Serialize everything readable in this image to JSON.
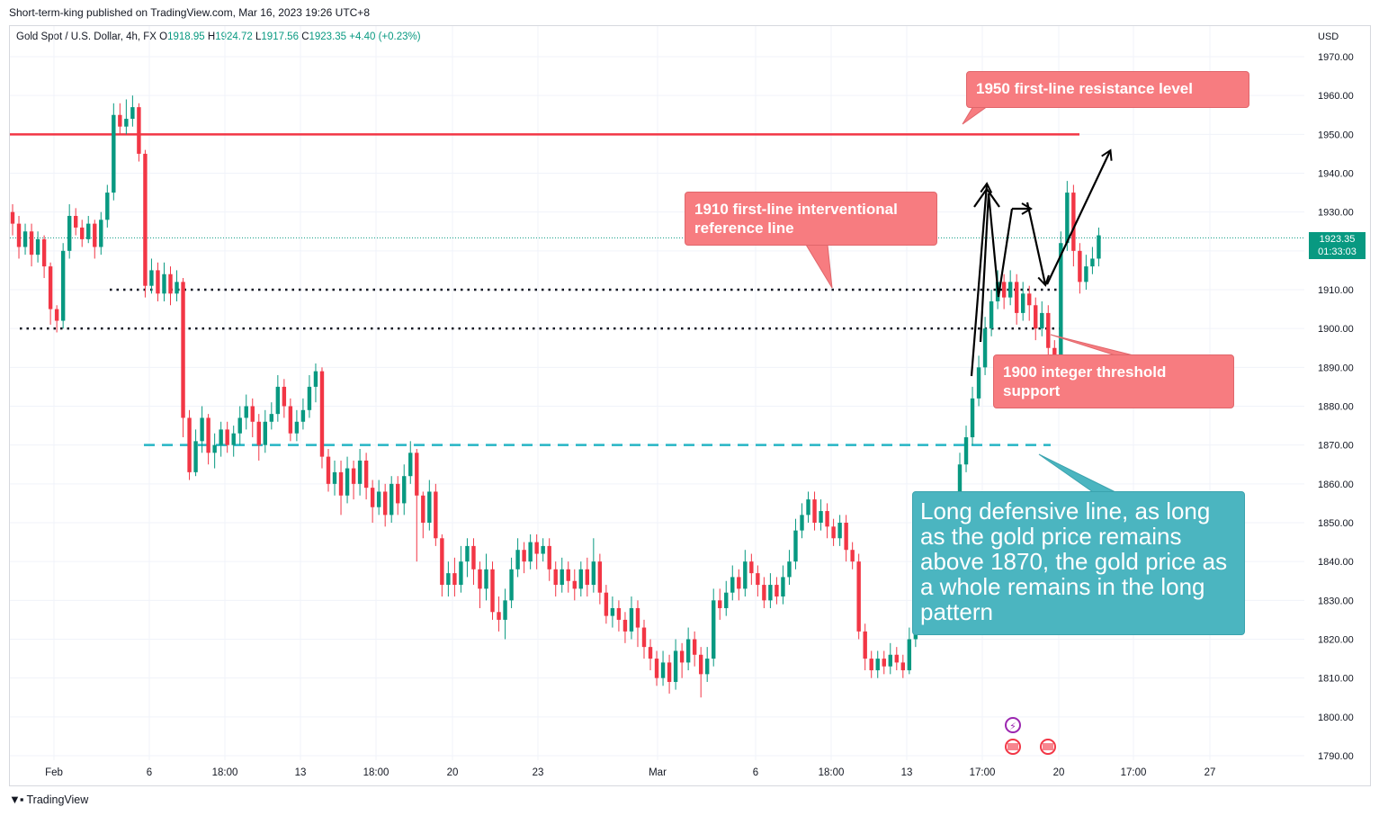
{
  "header": {
    "published": "Short-term-king published on TradingView.com, Mar 16, 2023 19:26 UTC+8",
    "symbol": "Gold Spot / U.S. Dollar, 4h, FX",
    "open_label": "O",
    "open": "1918.95",
    "high_label": "H",
    "high": "1924.72",
    "low_label": "L",
    "low": "1917.56",
    "close_label": "C",
    "close": "1923.35",
    "change": "+4.40 (+0.23%)"
  },
  "currency": "USD",
  "last_price": {
    "price": "1923.35",
    "countdown": "01:33:03"
  },
  "footer": {
    "brand": "TradingView"
  },
  "colors": {
    "up": "#089981",
    "down": "#f23645",
    "resistance": "#f23645",
    "support_dashed": "#26b5c4",
    "callout_red": "#f77c80",
    "callout_teal": "#4bb5c0"
  },
  "annotations": [
    {
      "id": "resistance",
      "text": "1950 first-line resistance level"
    },
    {
      "id": "reference",
      "text": "1910 first-line interventional reference line"
    },
    {
      "id": "support",
      "text": "1900 integer threshold support"
    },
    {
      "id": "defensive",
      "text": "Long defensive line, as long as the gold price remains above 1870, the gold price as a whole remains in the long pattern"
    }
  ],
  "chart_data": {
    "type": "candlestick",
    "title": "Gold Spot / U.S. Dollar, 4h, FX",
    "y_ticks": [
      "1970.00",
      "1960.00",
      "1950.00",
      "1940.00",
      "1930.00",
      "1920.00",
      "1910.00",
      "1900.00",
      "1890.00",
      "1880.00",
      "1870.00",
      "1860.00",
      "1850.00",
      "1840.00",
      "1830.00",
      "1820.00",
      "1810.00",
      "1800.00",
      "1790.00"
    ],
    "x_ticks": [
      "Feb",
      "6",
      "18:00",
      "13",
      "18:00",
      "20",
      "23",
      "Mar",
      "6",
      "18:00",
      "13",
      "17:00",
      "20",
      "17:00",
      "27"
    ],
    "ylim": [
      1788,
      1978
    ],
    "levels": [
      {
        "name": "resistance",
        "value": 1950,
        "style": "solid"
      },
      {
        "name": "reference",
        "value": 1910,
        "style": "dotted"
      },
      {
        "name": "support",
        "value": 1900,
        "style": "dotted"
      },
      {
        "name": "defensive",
        "value": 1870,
        "style": "dashed"
      }
    ],
    "path_points": [
      1925,
      1912,
      1935,
      1910,
      1932,
      1910,
      1947
    ],
    "candles": [
      [
        1930,
        1927,
        1932,
        1924
      ],
      [
        1927,
        1921,
        1929,
        1918
      ],
      [
        1921,
        1925,
        1927,
        1919
      ],
      [
        1925,
        1919,
        1927,
        1916
      ],
      [
        1919,
        1923,
        1925,
        1917
      ],
      [
        1923,
        1916,
        1924,
        1913
      ],
      [
        1916,
        1905,
        1917,
        1901
      ],
      [
        1905,
        1902,
        1906,
        1899
      ],
      [
        1902,
        1920,
        1922,
        1900
      ],
      [
        1920,
        1929,
        1932,
        1918
      ],
      [
        1929,
        1926,
        1931,
        1924
      ],
      [
        1926,
        1923,
        1928,
        1921
      ],
      [
        1923,
        1927,
        1929,
        1922
      ],
      [
        1927,
        1921,
        1928,
        1918
      ],
      [
        1921,
        1928,
        1930,
        1919
      ],
      [
        1928,
        1935,
        1937,
        1926
      ],
      [
        1935,
        1955,
        1958,
        1933
      ],
      [
        1955,
        1952,
        1958,
        1950
      ],
      [
        1952,
        1954,
        1959,
        1950
      ],
      [
        1954,
        1957,
        1960,
        1952
      ],
      [
        1957,
        1945,
        1958,
        1943
      ],
      [
        1945,
        1911,
        1946,
        1908
      ],
      [
        1911,
        1915,
        1918,
        1909
      ],
      [
        1915,
        1909,
        1917,
        1907
      ],
      [
        1909,
        1914,
        1917,
        1907
      ],
      [
        1914,
        1909,
        1916,
        1906
      ],
      [
        1909,
        1912,
        1915,
        1907
      ],
      [
        1912,
        1877,
        1913,
        1872
      ],
      [
        1877,
        1863,
        1879,
        1861
      ],
      [
        1863,
        1871,
        1874,
        1862
      ],
      [
        1871,
        1877,
        1880,
        1868
      ],
      [
        1877,
        1868,
        1878,
        1865
      ],
      [
        1868,
        1870,
        1873,
        1864
      ],
      [
        1870,
        1874,
        1876,
        1867
      ],
      [
        1874,
        1870,
        1876,
        1868
      ],
      [
        1870,
        1873,
        1875,
        1867
      ],
      [
        1873,
        1877,
        1880,
        1870
      ],
      [
        1877,
        1880,
        1883,
        1874
      ],
      [
        1880,
        1876,
        1882,
        1872
      ],
      [
        1876,
        1870,
        1878,
        1866
      ],
      [
        1870,
        1876,
        1879,
        1868
      ],
      [
        1876,
        1878,
        1881,
        1874
      ],
      [
        1878,
        1885,
        1888,
        1876
      ],
      [
        1885,
        1880,
        1887,
        1877
      ],
      [
        1880,
        1873,
        1882,
        1871
      ],
      [
        1873,
        1876,
        1879,
        1871
      ],
      [
        1876,
        1879,
        1882,
        1874
      ],
      [
        1879,
        1885,
        1888,
        1877
      ],
      [
        1885,
        1889,
        1891,
        1881
      ],
      [
        1889,
        1867,
        1890,
        1864
      ],
      [
        1867,
        1860,
        1869,
        1858
      ],
      [
        1860,
        1863,
        1866,
        1857
      ],
      [
        1863,
        1857,
        1866,
        1852
      ],
      [
        1857,
        1864,
        1867,
        1855
      ],
      [
        1864,
        1860,
        1866,
        1856
      ],
      [
        1860,
        1866,
        1869,
        1857
      ],
      [
        1866,
        1859,
        1868,
        1856
      ],
      [
        1859,
        1854,
        1861,
        1850
      ],
      [
        1854,
        1858,
        1861,
        1852
      ],
      [
        1858,
        1852,
        1860,
        1849
      ],
      [
        1852,
        1860,
        1862,
        1850
      ],
      [
        1860,
        1855,
        1862,
        1852
      ],
      [
        1855,
        1862,
        1865,
        1852
      ],
      [
        1862,
        1868,
        1871,
        1860
      ],
      [
        1868,
        1857,
        1869,
        1840
      ],
      [
        1857,
        1850,
        1858,
        1846
      ],
      [
        1850,
        1858,
        1861,
        1848
      ],
      [
        1858,
        1846,
        1860,
        1844
      ],
      [
        1846,
        1834,
        1847,
        1831
      ],
      [
        1834,
        1837,
        1840,
        1831
      ],
      [
        1837,
        1834,
        1841,
        1831
      ],
      [
        1834,
        1840,
        1844,
        1832
      ],
      [
        1840,
        1844,
        1846,
        1836
      ],
      [
        1844,
        1838,
        1846,
        1834
      ],
      [
        1838,
        1833,
        1840,
        1828
      ],
      [
        1833,
        1838,
        1842,
        1830
      ],
      [
        1838,
        1827,
        1840,
        1825
      ],
      [
        1827,
        1825,
        1831,
        1822
      ],
      [
        1825,
        1830,
        1833,
        1820
      ],
      [
        1830,
        1838,
        1841,
        1828
      ],
      [
        1838,
        1843,
        1846,
        1836
      ],
      [
        1843,
        1840,
        1845,
        1837
      ],
      [
        1840,
        1845,
        1847,
        1838
      ],
      [
        1845,
        1842,
        1847,
        1838
      ],
      [
        1842,
        1844,
        1846,
        1840
      ],
      [
        1844,
        1838,
        1846,
        1835
      ],
      [
        1838,
        1834,
        1840,
        1831
      ],
      [
        1834,
        1838,
        1841,
        1832
      ],
      [
        1838,
        1835,
        1840,
        1832
      ],
      [
        1835,
        1833,
        1838,
        1830
      ],
      [
        1833,
        1838,
        1840,
        1831
      ],
      [
        1838,
        1834,
        1841,
        1831
      ],
      [
        1834,
        1840,
        1846,
        1832
      ],
      [
        1840,
        1832,
        1842,
        1829
      ],
      [
        1832,
        1826,
        1834,
        1824
      ],
      [
        1826,
        1828,
        1831,
        1823
      ],
      [
        1828,
        1825,
        1830,
        1822
      ],
      [
        1825,
        1822,
        1827,
        1819
      ],
      [
        1822,
        1828,
        1831,
        1820
      ],
      [
        1828,
        1823,
        1830,
        1818
      ],
      [
        1823,
        1818,
        1825,
        1815
      ],
      [
        1818,
        1815,
        1820,
        1812
      ],
      [
        1815,
        1810,
        1817,
        1808
      ],
      [
        1810,
        1814,
        1817,
        1808
      ],
      [
        1814,
        1809,
        1816,
        1806
      ],
      [
        1809,
        1817,
        1820,
        1807
      ],
      [
        1817,
        1814,
        1819,
        1810
      ],
      [
        1814,
        1820,
        1823,
        1812
      ],
      [
        1820,
        1816,
        1822,
        1813
      ],
      [
        1816,
        1811,
        1818,
        1805
      ],
      [
        1811,
        1815,
        1818,
        1809
      ],
      [
        1815,
        1830,
        1833,
        1813
      ],
      [
        1830,
        1828,
        1833,
        1825
      ],
      [
        1828,
        1832,
        1835,
        1826
      ],
      [
        1832,
        1836,
        1839,
        1830
      ],
      [
        1836,
        1833,
        1838,
        1830
      ],
      [
        1833,
        1840,
        1843,
        1831
      ],
      [
        1840,
        1837,
        1842,
        1834
      ],
      [
        1837,
        1834,
        1839,
        1831
      ],
      [
        1834,
        1830,
        1836,
        1828
      ],
      [
        1830,
        1834,
        1837,
        1828
      ],
      [
        1834,
        1831,
        1836,
        1829
      ],
      [
        1831,
        1836,
        1839,
        1829
      ],
      [
        1836,
        1840,
        1843,
        1834
      ],
      [
        1840,
        1848,
        1851,
        1838
      ],
      [
        1848,
        1852,
        1855,
        1846
      ],
      [
        1852,
        1856,
        1858,
        1850
      ],
      [
        1856,
        1850,
        1858,
        1848
      ],
      [
        1850,
        1853,
        1856,
        1848
      ],
      [
        1853,
        1849,
        1855,
        1846
      ],
      [
        1849,
        1846,
        1851,
        1844
      ],
      [
        1846,
        1850,
        1852,
        1844
      ],
      [
        1850,
        1843,
        1852,
        1840
      ],
      [
        1843,
        1840,
        1845,
        1838
      ],
      [
        1840,
        1822,
        1842,
        1820
      ],
      [
        1822,
        1815,
        1824,
        1812
      ],
      [
        1815,
        1812,
        1817,
        1810
      ],
      [
        1812,
        1815,
        1817,
        1810
      ],
      [
        1815,
        1813,
        1817,
        1811
      ],
      [
        1813,
        1816,
        1819,
        1811
      ],
      [
        1816,
        1814,
        1818,
        1812
      ],
      [
        1814,
        1812,
        1816,
        1810
      ],
      [
        1812,
        1820,
        1823,
        1811
      ],
      [
        1820,
        1827,
        1830,
        1818
      ],
      [
        1827,
        1832,
        1835,
        1825
      ],
      [
        1832,
        1836,
        1839,
        1830
      ],
      [
        1836,
        1833,
        1838,
        1830
      ],
      [
        1833,
        1831,
        1835,
        1829
      ],
      [
        1831,
        1833,
        1836,
        1830
      ],
      [
        1833,
        1845,
        1848,
        1831
      ],
      [
        1845,
        1865,
        1868,
        1843
      ],
      [
        1865,
        1872,
        1875,
        1863
      ],
      [
        1872,
        1882,
        1885,
        1870
      ],
      [
        1882,
        1890,
        1893,
        1880
      ],
      [
        1890,
        1900,
        1903,
        1888
      ],
      [
        1900,
        1907,
        1910,
        1898
      ],
      [
        1907,
        1912,
        1915,
        1905
      ],
      [
        1912,
        1908,
        1914,
        1905
      ],
      [
        1908,
        1912,
        1915,
        1906
      ],
      [
        1912,
        1904,
        1914,
        1901
      ],
      [
        1904,
        1909,
        1912,
        1902
      ],
      [
        1909,
        1906,
        1911,
        1902
      ],
      [
        1906,
        1900,
        1908,
        1897
      ],
      [
        1900,
        1904,
        1907,
        1898
      ],
      [
        1904,
        1895,
        1906,
        1892
      ],
      [
        1895,
        1889,
        1897,
        1887
      ],
      [
        1889,
        1922,
        1925,
        1887
      ],
      [
        1922,
        1935,
        1938,
        1920
      ],
      [
        1935,
        1920,
        1937,
        1916
      ],
      [
        1920,
        1912,
        1922,
        1909
      ],
      [
        1912,
        1916,
        1919,
        1910
      ],
      [
        1916,
        1918,
        1921,
        1914
      ],
      [
        1918,
        1924,
        1926,
        1916
      ]
    ]
  }
}
